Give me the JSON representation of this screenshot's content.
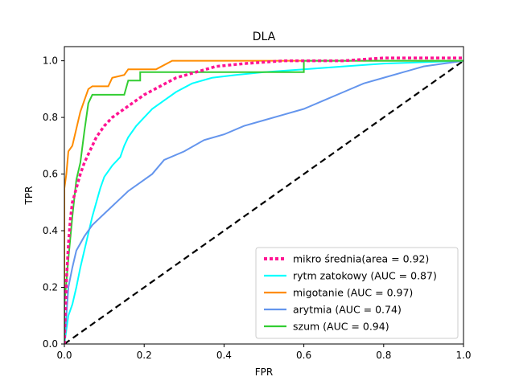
{
  "chart_data": {
    "type": "line",
    "title": "DLA",
    "xlabel": "FPR",
    "ylabel": "TPR",
    "xlim": [
      0.0,
      1.0
    ],
    "ylim": [
      0.0,
      1.05
    ],
    "x_ticks": [
      0.0,
      0.2,
      0.4,
      0.6,
      0.8,
      1.0
    ],
    "y_ticks": [
      0.0,
      0.2,
      0.4,
      0.6,
      0.8,
      1.0
    ],
    "x_tick_labels": [
      "0.0",
      "0.2",
      "0.4",
      "0.6",
      "0.8",
      "1.0"
    ],
    "y_tick_labels": [
      "0.0",
      "0.2",
      "0.4",
      "0.6",
      "0.8",
      "1.0"
    ],
    "grid": false,
    "legend_position": "lower-right",
    "series": [
      {
        "name": "mikro średnia(area = 0.92)",
        "color": "#ff1493",
        "style": "dotted",
        "points": [
          [
            0.0,
            0.0
          ],
          [
            0.005,
            0.22
          ],
          [
            0.01,
            0.35
          ],
          [
            0.015,
            0.44
          ],
          [
            0.02,
            0.5
          ],
          [
            0.03,
            0.55
          ],
          [
            0.04,
            0.6
          ],
          [
            0.05,
            0.64
          ],
          [
            0.06,
            0.67
          ],
          [
            0.07,
            0.7
          ],
          [
            0.08,
            0.73
          ],
          [
            0.1,
            0.77
          ],
          [
            0.12,
            0.8
          ],
          [
            0.15,
            0.83
          ],
          [
            0.18,
            0.86
          ],
          [
            0.2,
            0.88
          ],
          [
            0.24,
            0.91
          ],
          [
            0.28,
            0.94
          ],
          [
            0.33,
            0.96
          ],
          [
            0.38,
            0.98
          ],
          [
            0.45,
            0.99
          ],
          [
            0.55,
            1.0
          ],
          [
            0.7,
            1.0
          ],
          [
            0.8,
            1.01
          ],
          [
            1.0,
            1.01
          ]
        ]
      },
      {
        "name": "rytm zatokowy (AUC = 0.87)",
        "color": "#00ffff",
        "style": "solid",
        "points": [
          [
            0.0,
            0.0
          ],
          [
            0.01,
            0.1
          ],
          [
            0.02,
            0.14
          ],
          [
            0.03,
            0.2
          ],
          [
            0.04,
            0.27
          ],
          [
            0.05,
            0.33
          ],
          [
            0.06,
            0.39
          ],
          [
            0.07,
            0.45
          ],
          [
            0.08,
            0.5
          ],
          [
            0.09,
            0.55
          ],
          [
            0.1,
            0.59
          ],
          [
            0.12,
            0.63
          ],
          [
            0.14,
            0.66
          ],
          [
            0.15,
            0.7
          ],
          [
            0.16,
            0.73
          ],
          [
            0.18,
            0.77
          ],
          [
            0.2,
            0.8
          ],
          [
            0.22,
            0.83
          ],
          [
            0.25,
            0.86
          ],
          [
            0.28,
            0.89
          ],
          [
            0.32,
            0.92
          ],
          [
            0.37,
            0.94
          ],
          [
            0.43,
            0.95
          ],
          [
            0.5,
            0.96
          ],
          [
            0.6,
            0.97
          ],
          [
            0.7,
            0.98
          ],
          [
            0.8,
            0.99
          ],
          [
            1.0,
            1.0
          ]
        ]
      },
      {
        "name": "migotanie (AUC = 0.97)",
        "color": "#ff8c00",
        "style": "solid",
        "points": [
          [
            0.0,
            0.0
          ],
          [
            0.0,
            0.55
          ],
          [
            0.005,
            0.6
          ],
          [
            0.01,
            0.68
          ],
          [
            0.02,
            0.7
          ],
          [
            0.03,
            0.76
          ],
          [
            0.04,
            0.82
          ],
          [
            0.05,
            0.86
          ],
          [
            0.06,
            0.9
          ],
          [
            0.07,
            0.91
          ],
          [
            0.11,
            0.91
          ],
          [
            0.12,
            0.94
          ],
          [
            0.15,
            0.95
          ],
          [
            0.16,
            0.97
          ],
          [
            0.23,
            0.97
          ],
          [
            0.27,
            1.0
          ],
          [
            1.0,
            1.0
          ]
        ]
      },
      {
        "name": "arytmia (AUC = 0.74)",
        "color": "#6495ed",
        "style": "solid",
        "points": [
          [
            0.0,
            0.0
          ],
          [
            0.01,
            0.2
          ],
          [
            0.02,
            0.27
          ],
          [
            0.03,
            0.33
          ],
          [
            0.05,
            0.38
          ],
          [
            0.07,
            0.42
          ],
          [
            0.1,
            0.46
          ],
          [
            0.13,
            0.5
          ],
          [
            0.16,
            0.54
          ],
          [
            0.19,
            0.57
          ],
          [
            0.22,
            0.6
          ],
          [
            0.25,
            0.65
          ],
          [
            0.3,
            0.68
          ],
          [
            0.35,
            0.72
          ],
          [
            0.4,
            0.74
          ],
          [
            0.45,
            0.77
          ],
          [
            0.5,
            0.79
          ],
          [
            0.55,
            0.81
          ],
          [
            0.6,
            0.83
          ],
          [
            0.65,
            0.86
          ],
          [
            0.7,
            0.89
          ],
          [
            0.75,
            0.92
          ],
          [
            0.8,
            0.94
          ],
          [
            0.85,
            0.96
          ],
          [
            0.9,
            0.98
          ],
          [
            0.95,
            0.99
          ],
          [
            1.0,
            1.0
          ]
        ]
      },
      {
        "name": "szum (AUC = 0.94)",
        "color": "#32cd32",
        "style": "solid",
        "points": [
          [
            0.0,
            0.0
          ],
          [
            0.0,
            0.14
          ],
          [
            0.01,
            0.3
          ],
          [
            0.02,
            0.45
          ],
          [
            0.03,
            0.58
          ],
          [
            0.04,
            0.64
          ],
          [
            0.05,
            0.75
          ],
          [
            0.06,
            0.85
          ],
          [
            0.07,
            0.88
          ],
          [
            0.15,
            0.88
          ],
          [
            0.16,
            0.93
          ],
          [
            0.19,
            0.93
          ],
          [
            0.19,
            0.96
          ],
          [
            0.6,
            0.96
          ],
          [
            0.6,
            1.0
          ],
          [
            1.0,
            1.0
          ]
        ]
      }
    ],
    "reference_line": {
      "color": "#000000",
      "style": "dashed",
      "points": [
        [
          0.0,
          0.0
        ],
        [
          1.0,
          1.0
        ]
      ]
    }
  }
}
